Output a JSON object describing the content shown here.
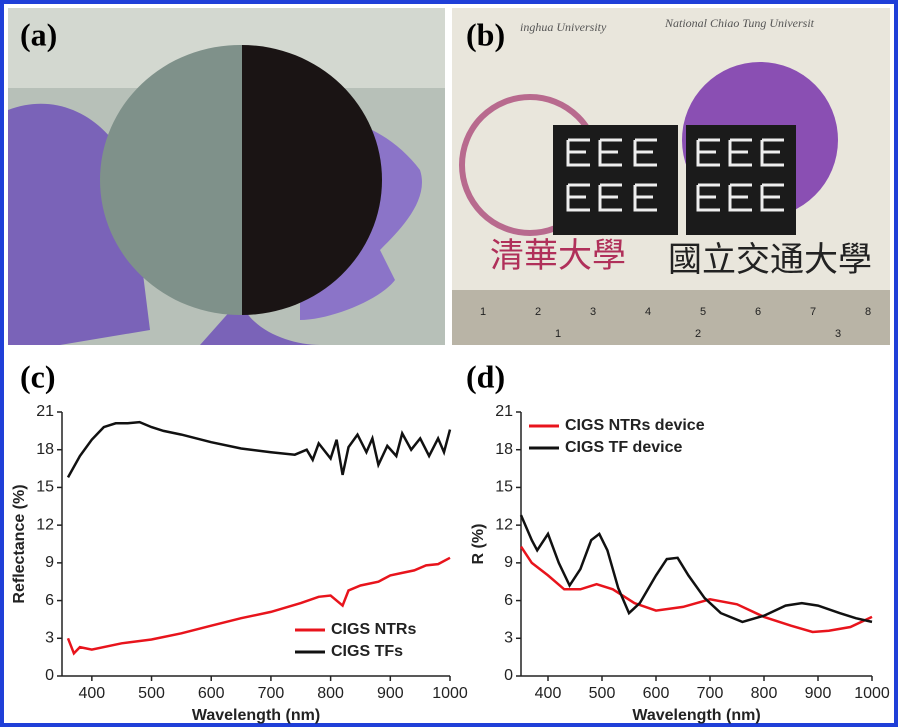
{
  "panels": [
    "(a)",
    "(b)",
    "(c)",
    "(d)"
  ],
  "photo_b": {
    "left_caption": "inghua University",
    "right_caption": "National Chiao Tung Universit",
    "left_chinese": "清華大學",
    "right_chinese": "國立交通大學",
    "ruler_top": [
      "1",
      "2",
      "3",
      "4",
      "5",
      "6",
      "7",
      "8"
    ],
    "ruler_bottom": [
      "1",
      "2",
      "3"
    ]
  },
  "chart_data": [
    {
      "type": "line",
      "xlabel": "Wavelength (nm)",
      "ylabel": "Reflectance (%)",
      "xlim": [
        350,
        1000
      ],
      "xticks": [
        400,
        500,
        600,
        700,
        800,
        900,
        1000
      ],
      "ylim": [
        0,
        21
      ],
      "yticks": [
        0,
        3,
        6,
        9,
        12,
        15,
        18,
        21
      ],
      "legend": "lower right",
      "series": [
        {
          "name": "CIGS NTRs",
          "color": "#e8141c",
          "x": [
            360,
            370,
            380,
            400,
            450,
            500,
            550,
            600,
            650,
            700,
            750,
            780,
            800,
            810,
            820,
            830,
            850,
            880,
            900,
            920,
            940,
            960,
            980,
            1000
          ],
          "values": [
            3.0,
            1.8,
            2.3,
            2.1,
            2.6,
            2.9,
            3.4,
            4.0,
            4.6,
            5.1,
            5.8,
            6.3,
            6.4,
            6.0,
            5.6,
            6.8,
            7.2,
            7.5,
            8.0,
            8.2,
            8.4,
            8.8,
            8.9,
            9.4
          ]
        },
        {
          "name": "CIGS TFs",
          "color": "#111111",
          "x": [
            360,
            380,
            400,
            420,
            440,
            460,
            480,
            500,
            520,
            550,
            600,
            650,
            700,
            740,
            760,
            770,
            780,
            800,
            810,
            820,
            830,
            845,
            860,
            870,
            880,
            895,
            910,
            920,
            935,
            950,
            965,
            980,
            990,
            1000
          ],
          "values": [
            15.8,
            17.5,
            18.8,
            19.8,
            20.1,
            20.1,
            20.2,
            19.8,
            19.5,
            19.2,
            18.6,
            18.1,
            17.8,
            17.6,
            18.0,
            17.2,
            18.5,
            17.3,
            18.8,
            16.0,
            18.2,
            19.2,
            17.8,
            18.9,
            16.8,
            18.3,
            17.5,
            19.3,
            18.0,
            18.9,
            17.5,
            18.9,
            17.8,
            19.6
          ]
        }
      ]
    },
    {
      "type": "line",
      "xlabel": "Wavelength (nm)",
      "ylabel": "R (%)",
      "xlim": [
        350,
        1000
      ],
      "xticks": [
        400,
        500,
        600,
        700,
        800,
        900,
        1000
      ],
      "ylim": [
        0,
        21
      ],
      "yticks": [
        0,
        3,
        6,
        9,
        12,
        15,
        18,
        21
      ],
      "legend": "upper left",
      "series": [
        {
          "name": "CIGS NTRs device",
          "color": "#e8141c",
          "x": [
            350,
            370,
            400,
            430,
            460,
            490,
            520,
            560,
            600,
            650,
            700,
            750,
            800,
            850,
            890,
            920,
            960,
            1000
          ],
          "values": [
            10.3,
            9.0,
            8.0,
            6.9,
            6.9,
            7.3,
            6.9,
            5.8,
            5.2,
            5.5,
            6.1,
            5.7,
            4.7,
            4.0,
            3.5,
            3.6,
            3.9,
            4.7
          ]
        },
        {
          "name": "CIGS TF device",
          "color": "#111111",
          "x": [
            350,
            370,
            380,
            400,
            420,
            440,
            460,
            480,
            495,
            510,
            530,
            550,
            570,
            600,
            620,
            640,
            660,
            690,
            720,
            760,
            800,
            840,
            870,
            900,
            940,
            970,
            1000
          ],
          "values": [
            12.8,
            10.8,
            10.0,
            11.3,
            9.0,
            7.2,
            8.5,
            10.8,
            11.3,
            10.0,
            7.0,
            5.0,
            5.8,
            8.0,
            9.3,
            9.4,
            8.0,
            6.2,
            5.0,
            4.3,
            4.8,
            5.6,
            5.8,
            5.6,
            5.0,
            4.6,
            4.3
          ]
        }
      ]
    }
  ]
}
